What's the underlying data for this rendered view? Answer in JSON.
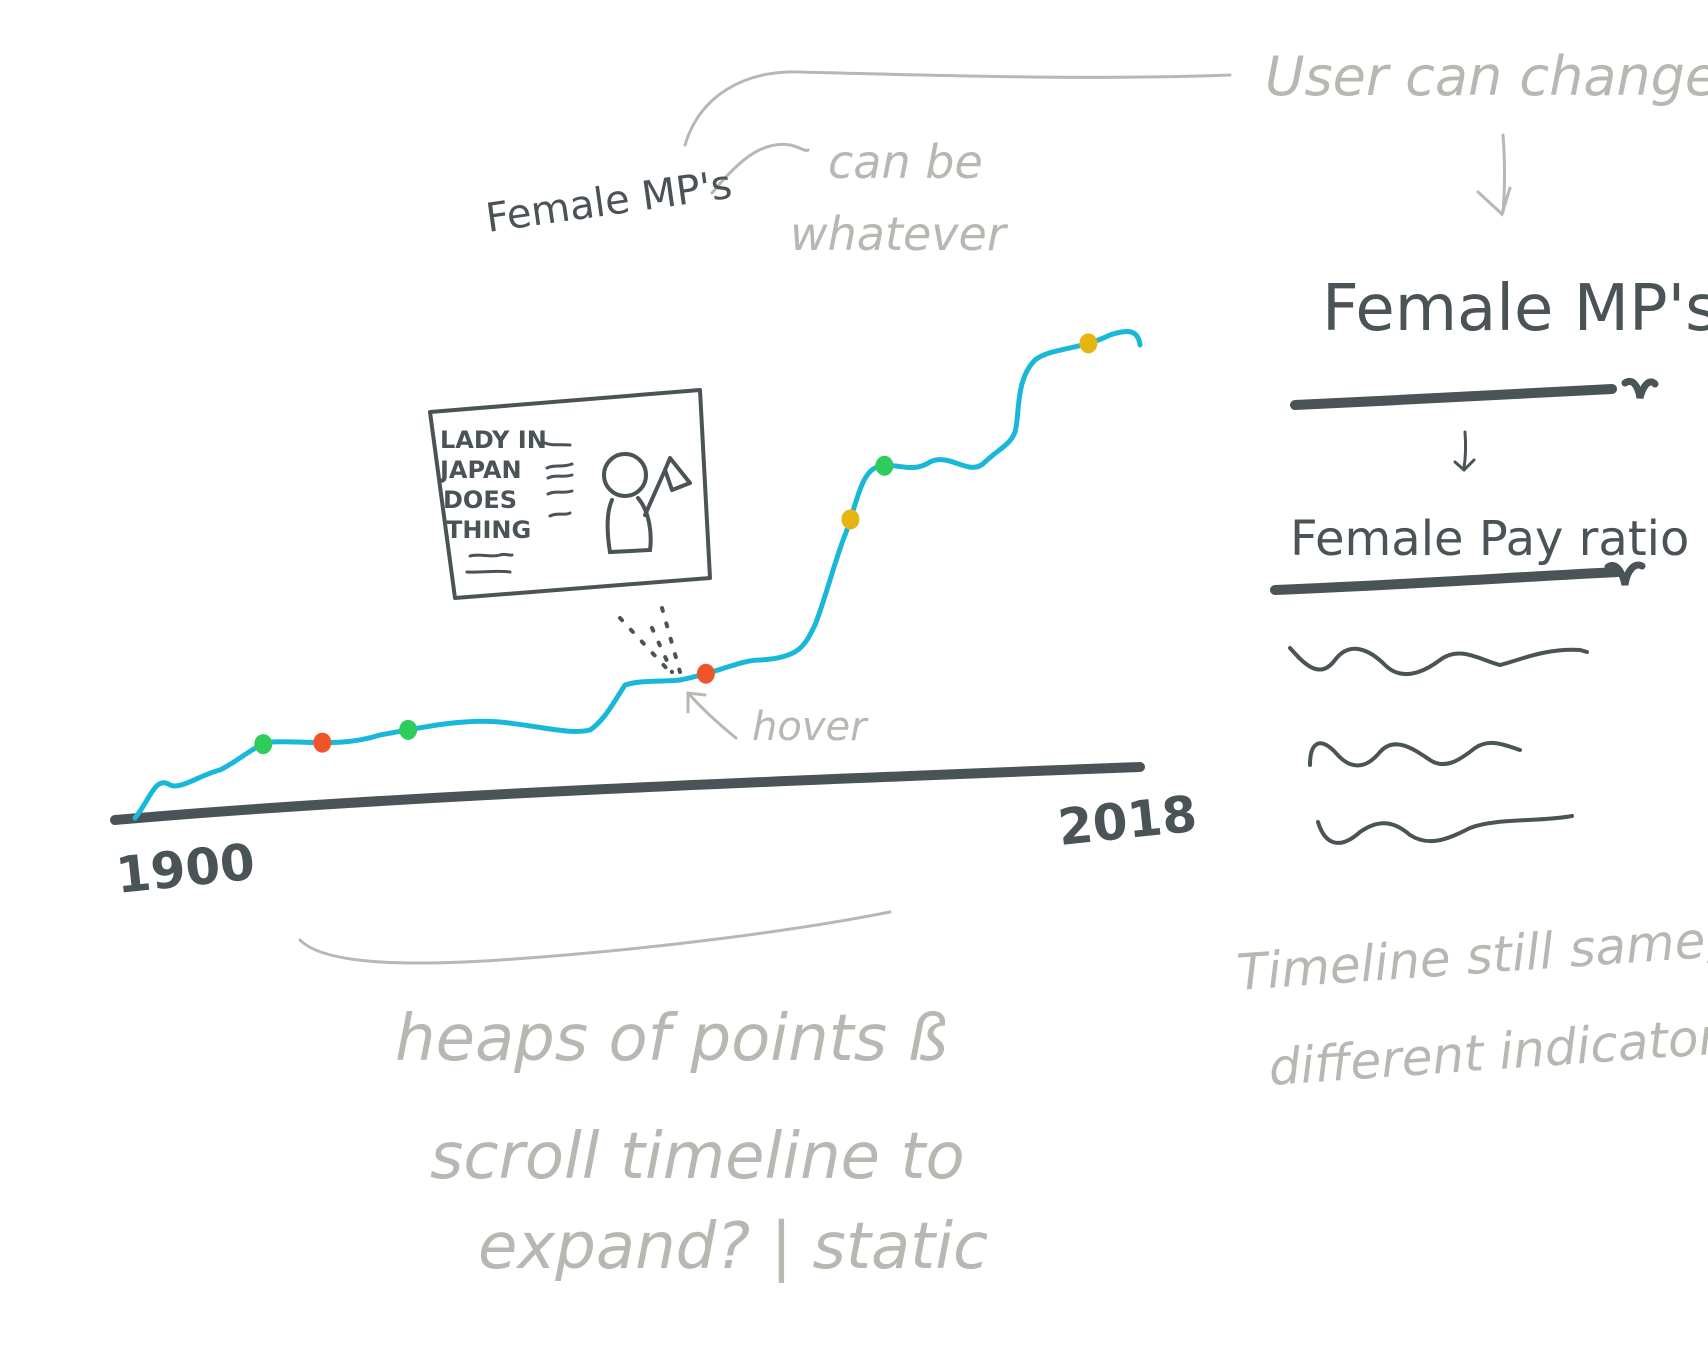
{
  "colors": {
    "ink": "#4a5355",
    "annotation": "#b9b7b1",
    "timeline_curve": "#1ab8d8",
    "marker_green": "#2ecc5a",
    "marker_red": "#f0552a",
    "marker_yellow": "#e8b412"
  },
  "timeline": {
    "title": "Female MP's",
    "start_year": "1900",
    "end_year": "2018",
    "markers": [
      {
        "color": "green",
        "year": 1915
      },
      {
        "color": "red",
        "year": 1922
      },
      {
        "color": "green",
        "year": 1932
      },
      {
        "color": "red",
        "year": 1967,
        "hovered": true
      },
      {
        "color": "yellow",
        "year": 1984
      },
      {
        "color": "green",
        "year": 1988
      },
      {
        "color": "yellow",
        "year": 2012
      }
    ],
    "hover_card": {
      "headline": [
        "LADY IN",
        "JAPAN",
        "DOES",
        "THING"
      ],
      "icons": [
        "person-icon",
        "flag-icon"
      ]
    }
  },
  "selector_panel": {
    "selected_indicator": "Female MP's",
    "options": [
      "Female Pay ratio"
    ],
    "scribble_lines": 3,
    "icons": [
      "chevron-down-icon",
      "chevron-down-icon",
      "arrow-down-icon"
    ]
  },
  "annotations": {
    "title_note": "can be\nwhatever",
    "selector_note": "User can change?",
    "hover_note": "hover",
    "points_note": "heaps of points ß\nscroll timeline to\nexpand? | static",
    "indicators_note": "Timeline still same,\ndifferent indicators"
  }
}
